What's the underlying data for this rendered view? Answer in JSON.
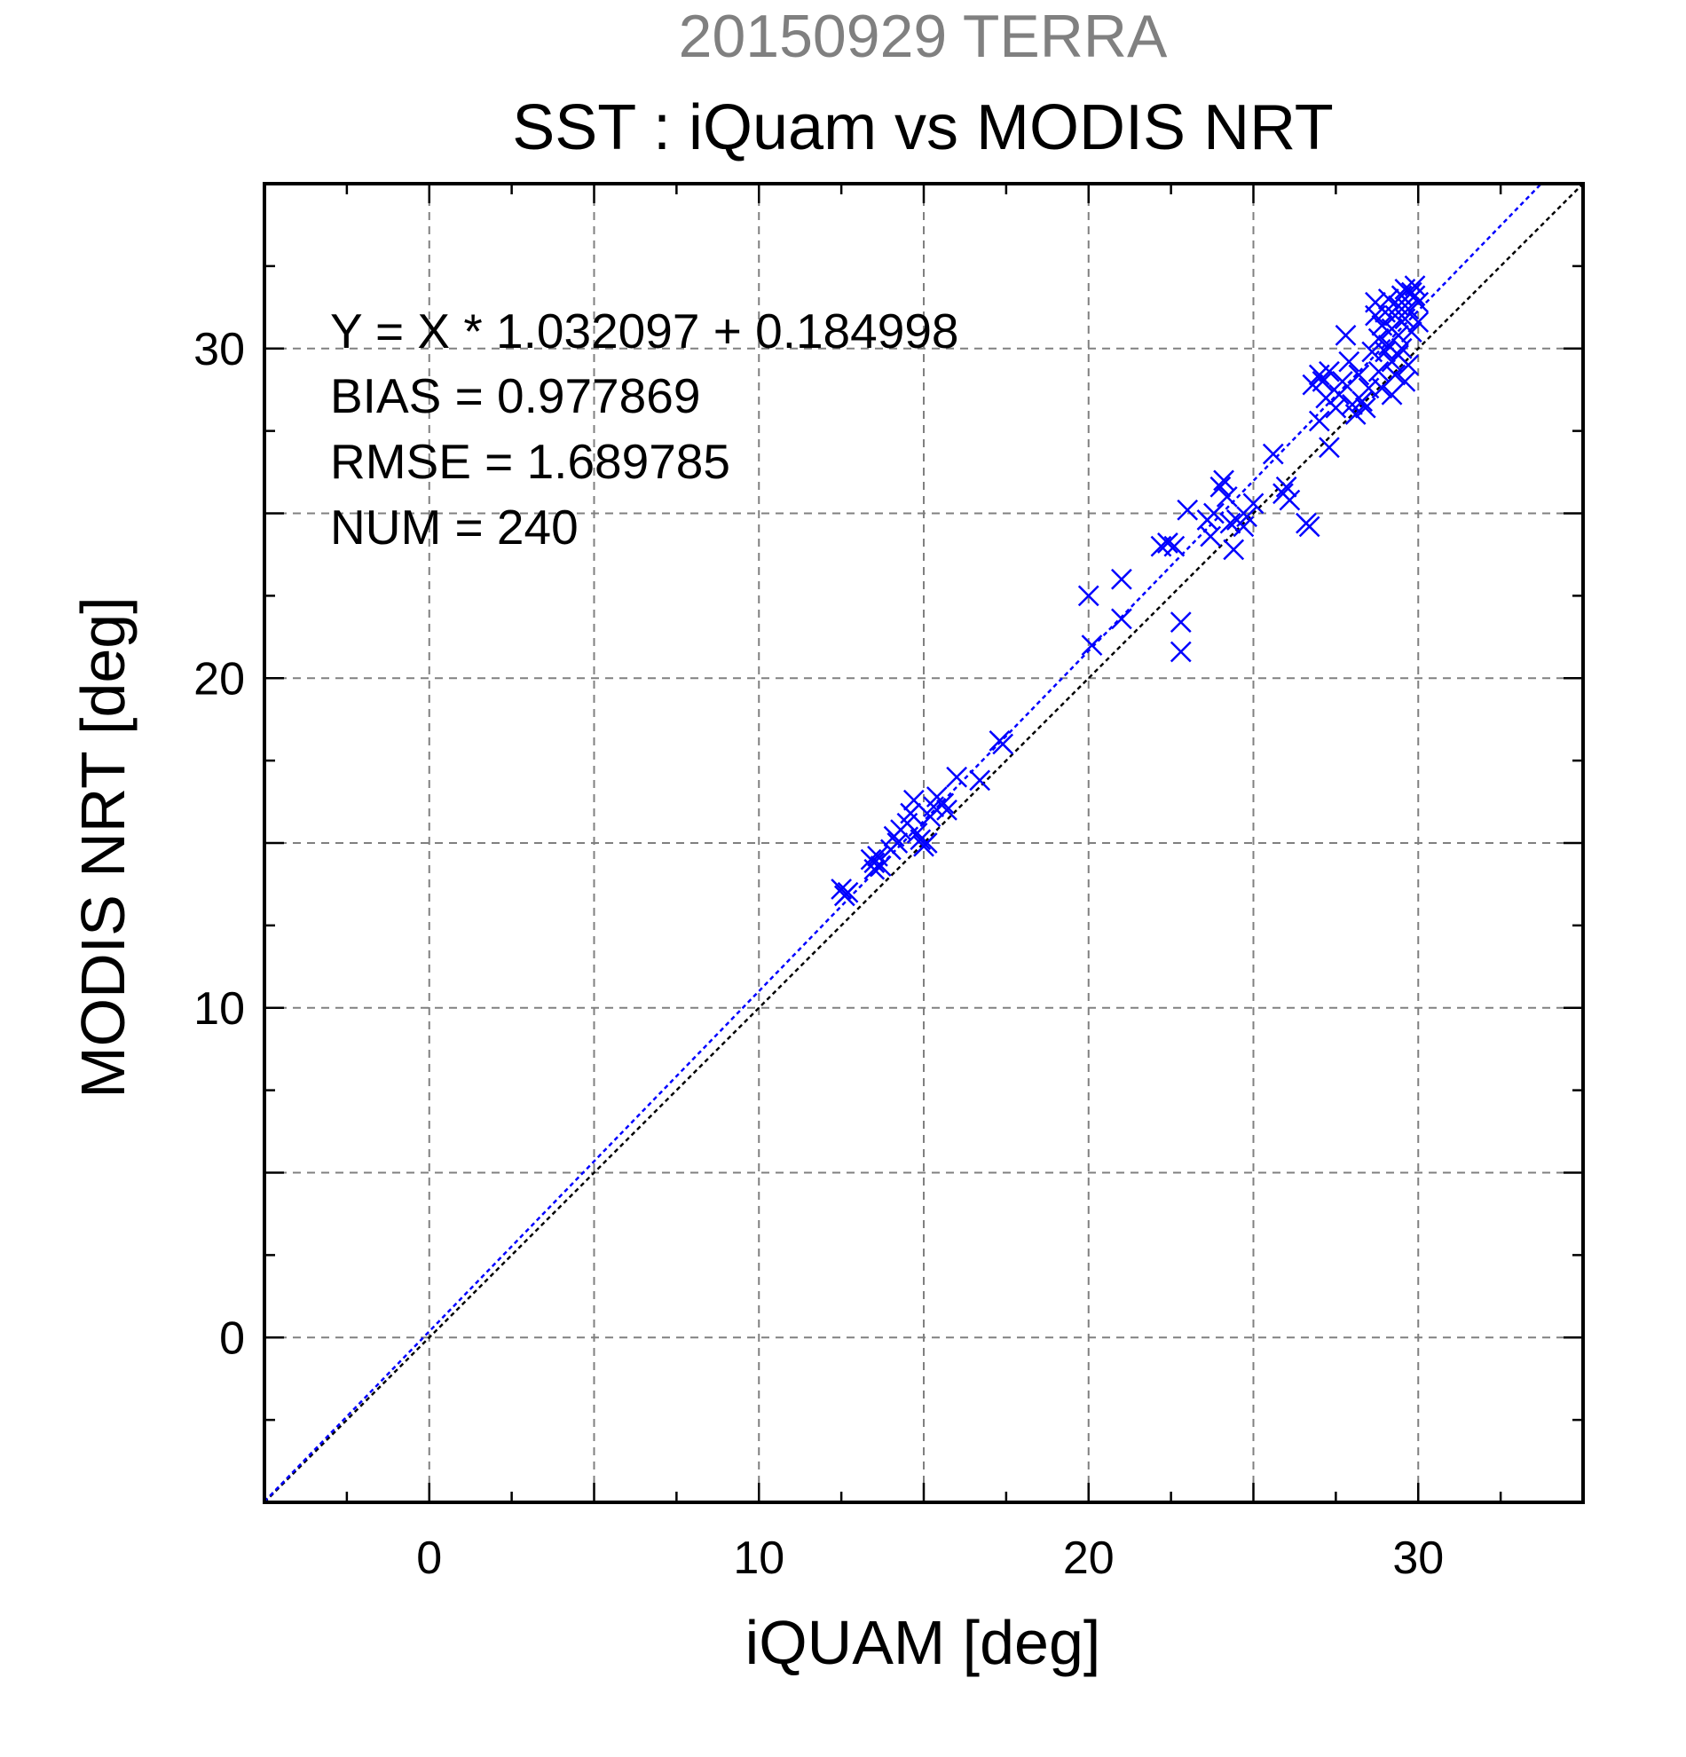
{
  "chart_data": {
    "type": "scatter",
    "supertitle": "20150929 TERRA",
    "title": "SST : iQuam vs MODIS NRT",
    "xlabel": "iQUAM [deg]",
    "ylabel": "MODIS NRT [deg]",
    "xlim": [
      -5,
      35
    ],
    "ylim": [
      -5,
      35
    ],
    "xticks": [
      0,
      10,
      20,
      30
    ],
    "yticks": [
      0,
      10,
      20,
      30
    ],
    "grid_step": 5,
    "grid": true,
    "marker": "x",
    "colors": {
      "points": "#0000ff",
      "fit_line": "#0000ff",
      "identity_line": "#000000",
      "grid": "#808080"
    },
    "regression": {
      "slope": 1.032097,
      "intercept": 0.184998
    },
    "stats": [
      "Y = X * 1.032097 + 0.184998",
      "BIAS = 0.977869",
      "RMSE = 1.689785",
      "NUM = 240"
    ],
    "series": [
      {
        "points": [
          [
            12.5,
            13.6
          ],
          [
            12.6,
            13.4
          ],
          [
            12.7,
            13.5
          ],
          [
            13.4,
            14.5
          ],
          [
            13.5,
            14.4
          ],
          [
            13.6,
            14.6
          ],
          [
            13.7,
            14.3
          ],
          [
            13.5,
            14.2
          ],
          [
            14.0,
            14.8
          ],
          [
            14.1,
            15.2
          ],
          [
            14.2,
            15.0
          ],
          [
            14.3,
            15.4
          ],
          [
            14.5,
            15.6
          ],
          [
            14.6,
            15.9
          ],
          [
            14.7,
            16.3
          ],
          [
            14.8,
            15.3
          ],
          [
            14.9,
            15.1
          ],
          [
            15.0,
            14.9
          ],
          [
            15.1,
            15.0
          ],
          [
            15.2,
            15.8
          ],
          [
            15.3,
            16.1
          ],
          [
            15.4,
            16.4
          ],
          [
            15.6,
            16.2
          ],
          [
            15.7,
            16.0
          ],
          [
            16.0,
            17.0
          ],
          [
            16.7,
            16.9
          ],
          [
            17.3,
            18.1
          ],
          [
            17.4,
            18.0
          ],
          [
            20.0,
            22.5
          ],
          [
            20.1,
            21.0
          ],
          [
            21.0,
            23.0
          ],
          [
            21.0,
            21.8
          ],
          [
            22.2,
            24.0
          ],
          [
            22.4,
            24.1
          ],
          [
            22.6,
            24.0
          ],
          [
            22.8,
            21.7
          ],
          [
            22.8,
            20.8
          ],
          [
            23.0,
            25.1
          ],
          [
            23.6,
            24.8
          ],
          [
            23.7,
            24.3
          ],
          [
            23.8,
            25.0
          ],
          [
            24.0,
            25.8
          ],
          [
            24.1,
            26.0
          ],
          [
            24.2,
            25.5
          ],
          [
            24.3,
            24.7
          ],
          [
            24.4,
            23.9
          ],
          [
            24.5,
            24.8
          ],
          [
            24.7,
            24.6
          ],
          [
            24.8,
            24.9
          ],
          [
            25.0,
            25.3
          ],
          [
            25.6,
            26.8
          ],
          [
            25.9,
            25.6
          ],
          [
            26.0,
            25.8
          ],
          [
            26.1,
            25.4
          ],
          [
            26.6,
            24.7
          ],
          [
            26.7,
            24.6
          ],
          [
            26.8,
            28.9
          ],
          [
            27.0,
            27.8
          ],
          [
            27.2,
            28.5
          ],
          [
            27.0,
            29.2
          ],
          [
            27.1,
            29.0
          ],
          [
            27.3,
            27.0
          ],
          [
            27.3,
            29.3
          ],
          [
            27.5,
            28.2
          ],
          [
            27.6,
            28.6
          ],
          [
            27.7,
            29.0
          ],
          [
            27.8,
            30.4
          ],
          [
            27.9,
            29.6
          ],
          [
            28.0,
            28.3
          ],
          [
            28.1,
            28.0
          ],
          [
            28.2,
            29.2
          ],
          [
            28.3,
            28.4
          ],
          [
            28.4,
            28.2
          ],
          [
            28.5,
            28.8
          ],
          [
            28.6,
            29.9
          ],
          [
            28.7,
            31.0
          ],
          [
            28.7,
            31.4
          ],
          [
            28.8,
            29.3
          ],
          [
            28.8,
            30.3
          ],
          [
            28.9,
            30.7
          ],
          [
            29.0,
            31.1
          ],
          [
            29.0,
            29.9
          ],
          [
            29.1,
            30.1
          ],
          [
            29.1,
            31.5
          ],
          [
            29.2,
            29.6
          ],
          [
            29.2,
            30.6
          ],
          [
            29.3,
            31.0
          ],
          [
            29.3,
            29.2
          ],
          [
            29.4,
            30.4
          ],
          [
            29.4,
            31.3
          ],
          [
            29.5,
            31.6
          ],
          [
            29.5,
            30.0
          ],
          [
            29.6,
            30.9
          ],
          [
            29.6,
            31.8
          ],
          [
            29.7,
            29.5
          ],
          [
            29.7,
            31.2
          ],
          [
            29.8,
            30.5
          ],
          [
            29.8,
            31.7
          ],
          [
            29.9,
            31.6
          ],
          [
            30.0,
            31.4
          ],
          [
            30.0,
            30.8
          ],
          [
            29.9,
            31.9
          ],
          [
            29.6,
            29.0
          ],
          [
            28.9,
            28.8
          ],
          [
            29.2,
            28.6
          ],
          [
            29.4,
            29.8
          ]
        ]
      }
    ]
  }
}
